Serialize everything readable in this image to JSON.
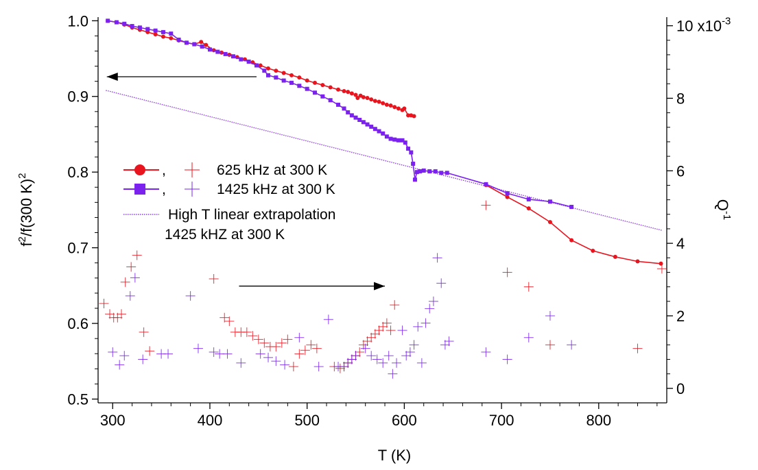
{
  "chart_data": {
    "type": "scatter",
    "x_axis": {
      "label": "T (K)",
      "range": [
        285,
        870
      ],
      "ticks": [
        "300",
        "400",
        "500",
        "600",
        "700",
        "800"
      ],
      "tick_values": [
        300,
        400,
        500,
        600,
        700,
        800
      ]
    },
    "y_left_axis": {
      "label_base": "f",
      "label_sup1": "2",
      "label_mid": "/f(300 K)",
      "label_sup2": "2",
      "range": [
        0.495,
        1.003
      ],
      "ticks": [
        "0.5",
        "0.6",
        "0.7",
        "0.8",
        "0.9",
        "1.0"
      ],
      "tick_values": [
        0.5,
        0.6,
        0.7,
        0.8,
        0.9,
        1.0
      ]
    },
    "y_right_axis": {
      "label_base": "Q",
      "label_sup": "-1",
      "range": [
        -0.0004,
        0.0102
      ],
      "ticks": [
        "0",
        "2",
        "4",
        "6",
        "8",
        "10 x10"
      ],
      "tick_exponent": "-3",
      "tick_values": [
        0,
        0.002,
        0.004,
        0.006,
        0.008,
        0.01
      ]
    },
    "legend": {
      "placement": "center-left",
      "entries": [
        {
          "label": "625 kHz at 300 K",
          "sep": ",",
          "color": "#e8141e"
        },
        {
          "label": "1425 kHz at 300 K",
          "sep": ",",
          "color": "#7b22ee"
        },
        {
          "label": "High T linear extrapolation",
          "color": "#8f3fe6"
        },
        {
          "label": "1425 kHZ at 300 K"
        }
      ]
    },
    "annotations": [
      {
        "type": "arrow",
        "direction": "left",
        "axis": "left",
        "from": [
          448,
          0.926
        ],
        "to": [
          294,
          0.926
        ]
      },
      {
        "type": "arrow",
        "direction": "right",
        "axis": "right",
        "from": [
          430,
          0.00282
        ],
        "to": [
          580,
          0.00282
        ]
      }
    ],
    "series": [
      {
        "name": "625 kHz at 300 K",
        "axis": "left",
        "style": "line-marker",
        "marker": "circle",
        "color": "#e8141e",
        "points": [
          [
            295,
            1.0
          ],
          [
            304,
            0.998
          ],
          [
            312,
            0.995
          ],
          [
            320,
            0.991
          ],
          [
            328,
            0.988
          ],
          [
            336,
            0.985
          ],
          [
            344,
            0.982
          ],
          [
            352,
            0.979
          ],
          [
            360,
            0.977
          ],
          [
            368,
            0.974
          ],
          [
            376,
            0.971
          ],
          [
            384,
            0.969
          ],
          [
            391,
            0.972
          ],
          [
            396,
            0.968
          ],
          [
            404,
            0.961
          ],
          [
            412,
            0.958
          ],
          [
            420,
            0.955
          ],
          [
            428,
            0.952
          ],
          [
            436,
            0.949
          ],
          [
            444,
            0.945
          ],
          [
            452,
            0.941
          ],
          [
            460,
            0.937
          ],
          [
            468,
            0.934
          ],
          [
            476,
            0.931
          ],
          [
            484,
            0.928
          ],
          [
            492,
            0.925
          ],
          [
            500,
            0.921
          ],
          [
            508,
            0.918
          ],
          [
            516,
            0.915
          ],
          [
            524,
            0.912
          ],
          [
            532,
            0.909
          ],
          [
            538,
            0.907
          ],
          [
            542,
            0.906
          ],
          [
            546,
            0.904
          ],
          [
            550,
            0.902
          ],
          [
            552,
            0.898
          ],
          [
            555,
            0.901
          ],
          [
            558,
            0.899
          ],
          [
            562,
            0.898
          ],
          [
            566,
            0.896
          ],
          [
            570,
            0.894
          ],
          [
            574,
            0.893
          ],
          [
            578,
            0.891
          ],
          [
            582,
            0.889
          ],
          [
            586,
            0.888
          ],
          [
            590,
            0.886
          ],
          [
            594,
            0.884
          ],
          [
            598,
            0.882
          ],
          [
            600,
            0.884
          ],
          [
            604,
            0.875
          ],
          [
            607,
            0.875
          ],
          [
            610,
            0.874
          ],
          [
            684,
            0.783
          ],
          [
            706,
            0.767
          ],
          [
            728,
            0.752
          ],
          [
            750,
            0.734
          ],
          [
            772,
            0.71
          ],
          [
            794,
            0.696
          ],
          [
            817,
            0.688
          ],
          [
            840,
            0.682
          ],
          [
            864,
            0.679
          ]
        ]
      },
      {
        "name": "1425 kHz at 300 K",
        "axis": "left",
        "style": "line-marker",
        "marker": "square",
        "color": "#7b22ee",
        "points": [
          [
            295,
            1.0
          ],
          [
            304,
            0.998
          ],
          [
            312,
            0.996
          ],
          [
            320,
            0.993
          ],
          [
            328,
            0.991
          ],
          [
            336,
            0.989
          ],
          [
            344,
            0.987
          ],
          [
            352,
            0.985
          ],
          [
            360,
            0.983
          ],
          [
            368,
            0.975
          ],
          [
            376,
            0.971
          ],
          [
            384,
            0.969
          ],
          [
            392,
            0.966
          ],
          [
            400,
            0.962
          ],
          [
            408,
            0.959
          ],
          [
            416,
            0.956
          ],
          [
            424,
            0.953
          ],
          [
            432,
            0.949
          ],
          [
            440,
            0.946
          ],
          [
            448,
            0.941
          ],
          [
            456,
            0.934
          ],
          [
            460,
            0.928
          ],
          [
            468,
            0.925
          ],
          [
            476,
            0.921
          ],
          [
            484,
            0.918
          ],
          [
            492,
            0.914
          ],
          [
            500,
            0.91
          ],
          [
            508,
            0.905
          ],
          [
            516,
            0.9
          ],
          [
            524,
            0.895
          ],
          [
            532,
            0.889
          ],
          [
            538,
            0.884
          ],
          [
            542,
            0.879
          ],
          [
            546,
            0.875
          ],
          [
            550,
            0.872
          ],
          [
            554,
            0.869
          ],
          [
            558,
            0.866
          ],
          [
            562,
            0.863
          ],
          [
            566,
            0.86
          ],
          [
            570,
            0.857
          ],
          [
            574,
            0.854
          ],
          [
            578,
            0.851
          ],
          [
            582,
            0.847
          ],
          [
            586,
            0.844
          ],
          [
            590,
            0.843
          ],
          [
            594,
            0.842
          ],
          [
            598,
            0.842
          ],
          [
            601,
            0.839
          ],
          [
            604,
            0.831
          ],
          [
            607,
            0.826
          ],
          [
            609,
            0.811
          ],
          [
            611,
            0.79
          ],
          [
            613,
            0.8
          ],
          [
            616,
            0.801
          ],
          [
            620,
            0.802
          ],
          [
            626,
            0.801
          ],
          [
            632,
            0.801
          ],
          [
            638,
            0.799
          ],
          [
            644,
            0.799
          ],
          [
            684,
            0.784
          ],
          [
            706,
            0.772
          ],
          [
            728,
            0.764
          ],
          [
            750,
            0.761
          ],
          [
            772,
            0.754
          ]
        ]
      },
      {
        "name": "High T linear extrapolation",
        "axis": "left",
        "style": "dotted-line",
        "color": "#8f3fe6",
        "points": [
          [
            293,
            0.908
          ],
          [
            865,
            0.723
          ]
        ]
      },
      {
        "name": "625 kHz at 300 K",
        "axis": "right",
        "style": "plus",
        "color": "#e8141e",
        "points": [
          [
            291,
            0.00234
          ],
          [
            297,
            0.00205
          ],
          [
            301,
            0.00195
          ],
          [
            305,
            0.00195
          ],
          [
            309,
            0.00205
          ],
          [
            313,
            0.00293
          ],
          [
            319,
            0.00335
          ],
          [
            325,
            0.00367
          ],
          [
            332,
            0.00155
          ],
          [
            338,
            0.00103
          ],
          [
            404,
            0.00302
          ],
          [
            415,
            0.00195
          ],
          [
            420,
            0.00185
          ],
          [
            426,
            0.00155
          ],
          [
            432,
            0.00155
          ],
          [
            438,
            0.00155
          ],
          [
            444,
            0.00145
          ],
          [
            450,
            0.00135
          ],
          [
            456,
            0.00125
          ],
          [
            462,
            0.00115
          ],
          [
            468,
            0.00115
          ],
          [
            474,
            0.00125
          ],
          [
            480,
            0.00135
          ],
          [
            486,
            0.0006
          ],
          [
            492,
            0.00095
          ],
          [
            498,
            0.00105
          ],
          [
            504,
            0.0012
          ],
          [
            510,
            0.0011
          ],
          [
            528,
            0.0006
          ],
          [
            534,
            0.00055
          ],
          [
            538,
            0.0006
          ],
          [
            542,
            0.0007
          ],
          [
            546,
            0.0008
          ],
          [
            550,
            0.0009
          ],
          [
            554,
            0.001
          ],
          [
            558,
            0.0012
          ],
          [
            562,
            0.0013
          ],
          [
            566,
            0.0014
          ],
          [
            570,
            0.0015
          ],
          [
            574,
            0.0016
          ],
          [
            578,
            0.0017
          ],
          [
            582,
            0.0018
          ],
          [
            586,
            0.0016
          ],
          [
            590,
            0.0023
          ],
          [
            684,
            0.00505
          ],
          [
            706,
            0.0032
          ],
          [
            728,
            0.0028
          ],
          [
            750,
            0.0012
          ],
          [
            840,
            0.0011
          ],
          [
            865,
            0.0033
          ]
        ]
      },
      {
        "name": "1425 kHz at 300 K",
        "axis": "right",
        "style": "plus",
        "color": "#7b22ee",
        "points": [
          [
            300,
            0.001
          ],
          [
            307,
            0.00065
          ],
          [
            312,
            0.0009
          ],
          [
            318,
            0.00255
          ],
          [
            323,
            0.00305
          ],
          [
            331,
            0.0008
          ],
          [
            350,
            0.00095
          ],
          [
            357,
            0.00095
          ],
          [
            380,
            0.00255
          ],
          [
            388,
            0.0011
          ],
          [
            404,
            0.001
          ],
          [
            410,
            0.00095
          ],
          [
            418,
            0.00095
          ],
          [
            432,
            0.0007
          ],
          [
            452,
            0.00095
          ],
          [
            460,
            0.00085
          ],
          [
            468,
            0.00075
          ],
          [
            477,
            0.00065
          ],
          [
            492,
            0.0014
          ],
          [
            512,
            0.0006
          ],
          [
            522,
            0.0019
          ],
          [
            532,
            0.0006
          ],
          [
            538,
            0.0006
          ],
          [
            542,
            0.0007
          ],
          [
            546,
            0.0008
          ],
          [
            550,
            0.0009
          ],
          [
            560,
            0.0011
          ],
          [
            566,
            0.0009
          ],
          [
            572,
            0.0008
          ],
          [
            578,
            0.0007
          ],
          [
            584,
            0.0009
          ],
          [
            588,
            0.0004
          ],
          [
            592,
            0.0007
          ],
          [
            598,
            0.0016
          ],
          [
            602,
            0.0009
          ],
          [
            606,
            0.001
          ],
          [
            610,
            0.0012
          ],
          [
            614,
            0.0017
          ],
          [
            618,
            0.0007
          ],
          [
            622,
            0.0018
          ],
          [
            626,
            0.0022
          ],
          [
            630,
            0.0024
          ],
          [
            634,
            0.0036
          ],
          [
            638,
            0.0029
          ],
          [
            642,
            0.0012
          ],
          [
            646,
            0.0013
          ],
          [
            684,
            0.001
          ],
          [
            706,
            0.0008
          ],
          [
            728,
            0.0014
          ],
          [
            750,
            0.002
          ],
          [
            772,
            0.0012
          ]
        ]
      }
    ]
  }
}
